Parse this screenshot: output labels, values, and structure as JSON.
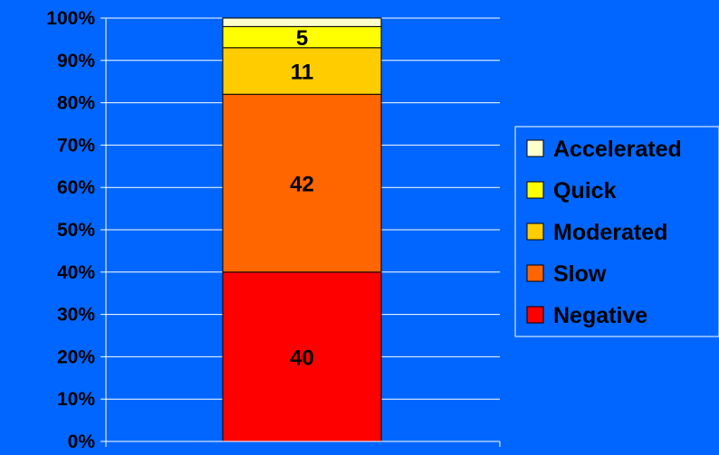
{
  "chart_data": {
    "type": "bar",
    "stacked": true,
    "percent_scale": true,
    "categories": [
      ""
    ],
    "series": [
      {
        "name": "Negative",
        "values": [
          40
        ],
        "label": "40",
        "color": "#ff0000"
      },
      {
        "name": "Slow",
        "values": [
          42
        ],
        "label": "42",
        "color": "#ff6600"
      },
      {
        "name": "Moderated",
        "values": [
          11
        ],
        "label": "11",
        "color": "#ffcc00"
      },
      {
        "name": "Quick",
        "values": [
          5
        ],
        "label": "5",
        "color": "#ffff00"
      },
      {
        "name": "Accelerated",
        "values": [
          2
        ],
        "label": "",
        "color": "#ffffcc"
      }
    ],
    "legend_order": [
      "Accelerated",
      "Quick",
      "Moderated",
      "Slow",
      "Negative"
    ],
    "y_ticks": [
      "0%",
      "10%",
      "20%",
      "30%",
      "40%",
      "50%",
      "60%",
      "70%",
      "80%",
      "90%",
      "100%"
    ],
    "ylim": [
      0,
      100
    ],
    "title": "",
    "xlabel": "",
    "ylabel": "",
    "grid": true,
    "legend_position": "right",
    "colors": {
      "background": "#0066ff",
      "gridline": "#ffffff",
      "axis": "#ffffff"
    }
  }
}
